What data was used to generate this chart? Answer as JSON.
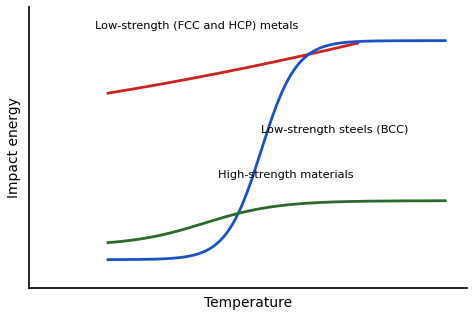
{
  "title": "",
  "xlabel": "Temperature",
  "ylabel": "Impact energy",
  "background_color": "#ffffff",
  "fcc_label": "Low-strength (FCC and HCP) metals",
  "bcc_label": "Low-strength steels (BCC)",
  "high_label": "High-strength materials",
  "fcc_color": "#cc2222",
  "bcc_color": "#1a52c4",
  "high_color": "#2a6b2a",
  "line_width": 2.0,
  "xlim": [
    0,
    10
  ],
  "ylim": [
    0,
    10
  ]
}
